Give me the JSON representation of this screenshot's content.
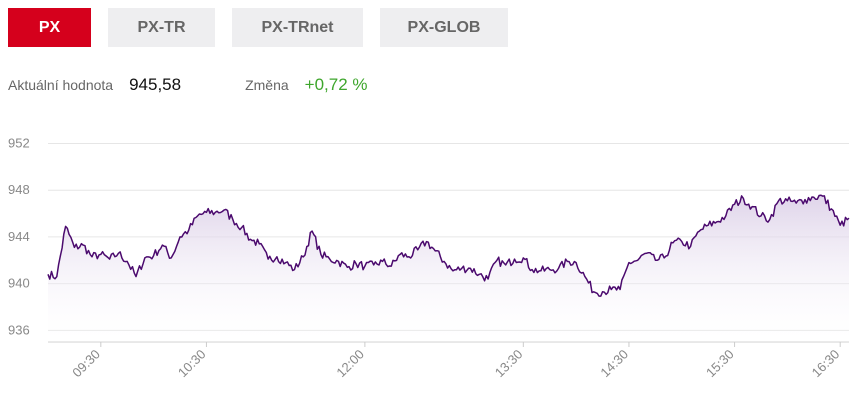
{
  "tabs": [
    {
      "label": "PX",
      "active": true
    },
    {
      "label": "PX-TR",
      "active": false
    },
    {
      "label": "PX-TRnet",
      "active": false
    },
    {
      "label": "PX-GLOB",
      "active": false
    }
  ],
  "stats": {
    "current_label": "Aktuální hodnota",
    "current_value": "945,58",
    "change_label": "Změna",
    "change_value": "+0,72 %"
  },
  "colors": {
    "accent": "#d5001c",
    "positive": "#3ea62c",
    "series_line": "#4b0a6e",
    "series_fill": "#e8dff0",
    "grid": "#e6e6e6",
    "tab_bg": "#eeeef0"
  },
  "chart_data": {
    "type": "area",
    "title": "",
    "xlabel": "",
    "ylabel": "",
    "ylim": [
      935,
      953.5
    ],
    "yticks": [
      936,
      940,
      944,
      948,
      952
    ],
    "xlim": [
      "09:00",
      "16:35"
    ],
    "xticks": [
      "09:30",
      "10:30",
      "12:00",
      "13:30",
      "14:30",
      "15:30",
      "16:30"
    ],
    "grid": true,
    "legend": "none",
    "series": [
      {
        "x": [
          "09:00",
          "09:05",
          "09:10",
          "09:15",
          "09:20",
          "09:25",
          "09:30",
          "09:35",
          "09:40",
          "09:45",
          "09:50",
          "09:55",
          "10:00",
          "10:05",
          "10:10",
          "10:15",
          "10:20",
          "10:25",
          "10:30",
          "10:35",
          "10:40",
          "10:45",
          "10:50",
          "10:55",
          "11:00",
          "11:05",
          "11:10",
          "11:15",
          "11:20",
          "11:25",
          "11:30",
          "11:35",
          "11:40",
          "11:45",
          "11:50",
          "11:55",
          "12:00",
          "12:05",
          "12:10",
          "12:15",
          "12:20",
          "12:25",
          "12:30",
          "12:35",
          "12:40",
          "12:45",
          "12:50",
          "12:55",
          "13:00",
          "13:05",
          "13:10",
          "13:15",
          "13:20",
          "13:25",
          "13:30",
          "13:35",
          "13:40",
          "13:45",
          "13:50",
          "13:55",
          "14:00",
          "14:05",
          "14:10",
          "14:15",
          "14:20",
          "14:25",
          "14:30",
          "14:35",
          "14:40",
          "14:45",
          "14:50",
          "14:55",
          "15:00",
          "15:05",
          "15:10",
          "15:15",
          "15:20",
          "15:25",
          "15:30",
          "15:35",
          "15:40",
          "15:45",
          "15:50",
          "15:55",
          "16:00",
          "16:05",
          "16:10",
          "16:15",
          "16:20",
          "16:25",
          "16:30",
          "16:35"
        ],
        "values": [
          940.8,
          940.6,
          944.9,
          943.1,
          943.3,
          942.3,
          942.5,
          942.1,
          942.6,
          941.9,
          940.6,
          942.2,
          942.4,
          943.3,
          942.2,
          944.0,
          944.6,
          945.8,
          946.1,
          946.1,
          946.3,
          945.5,
          944.8,
          943.8,
          943.4,
          942.1,
          942.3,
          941.8,
          941.2,
          942.3,
          944.5,
          942.5,
          942.1,
          941.9,
          941.4,
          941.7,
          941.5,
          941.6,
          941.9,
          941.5,
          942.5,
          942.3,
          942.9,
          943.6,
          942.8,
          941.9,
          941.1,
          941.3,
          941.3,
          940.8,
          940.4,
          942.0,
          941.6,
          942.1,
          942.2,
          941.2,
          941.1,
          941.2,
          941.3,
          941.9,
          941.8,
          940.6,
          939.3,
          939.3,
          939.5,
          939.5,
          941.8,
          942.0,
          942.6,
          942.0,
          942.2,
          943.5,
          943.6,
          943.2,
          944.5,
          945.0,
          945.3,
          945.8,
          946.8,
          947.3,
          946.6,
          945.8,
          945.5,
          947.1,
          947.1,
          946.9,
          947.2,
          947.4,
          947.5,
          946.4,
          945.0,
          945.6
        ]
      }
    ]
  }
}
